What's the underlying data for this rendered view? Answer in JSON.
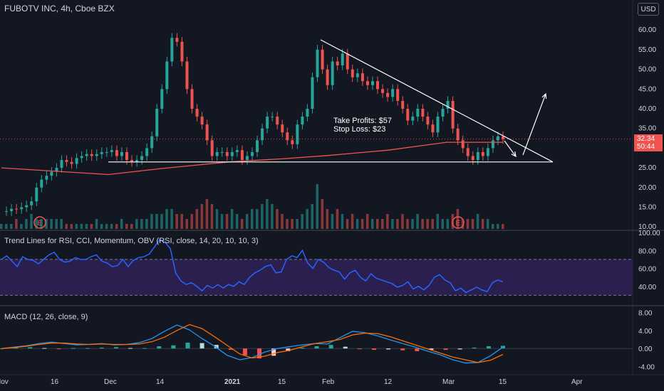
{
  "header": {
    "title": "FUBOTV INC, 4h, Cboe BZX",
    "currency": "USD"
  },
  "price_tag": {
    "price": "32.34",
    "countdown": "50:44"
  },
  "annotation": {
    "line1": "Take Profits: $57",
    "line2": "Stop Loss: $23"
  },
  "panes": {
    "rsi": {
      "title": "Trend Lines for RSI, CCI, Momentum, OBV (RSI, close, 14, 20, 10, 10, 3)"
    },
    "macd": {
      "title": "MACD (12, 26, close, 9)"
    }
  },
  "earnings_markers": [
    "E",
    "E"
  ],
  "colors": {
    "background": "#131722",
    "up": "#26a69a",
    "down": "#ef5350",
    "ma": "#ef5350",
    "rsi_line": "#2962ff",
    "rsi_band": "#2a1f4f",
    "macd_line": "#2196f3",
    "signal_line": "#ff6d00",
    "trendline": "#ffffff"
  },
  "chart_data": [
    {
      "type": "line",
      "title": "FUBOTV INC, 4h, Cboe BZX",
      "y_ticks": [
        "60.00",
        "55.00",
        "50.00",
        "45.00",
        "40.00",
        "35.00",
        "30.00",
        "25.00",
        "20.00",
        "15.00",
        "10.00"
      ],
      "x_ticks": [
        "Nov",
        "16",
        "Dec",
        "14",
        "2021",
        "15",
        "Feb",
        "12",
        "Mar",
        "15",
        "Apr"
      ],
      "ylim": [
        9.5,
        64
      ],
      "close_series": [
        14,
        14,
        14.6,
        14.5,
        15,
        15.5,
        16.5,
        20,
        22,
        23,
        24,
        25,
        27,
        26.5,
        26,
        27.5,
        28,
        28.5,
        28,
        28.5,
        29,
        29,
        29.5,
        28,
        29,
        27,
        26.5,
        27,
        28,
        30,
        33,
        40,
        45,
        52,
        58,
        57,
        52,
        45,
        40,
        38,
        36,
        32,
        28,
        29,
        29,
        28,
        29,
        29.5,
        27,
        28,
        29,
        32,
        35,
        38,
        38,
        36,
        34,
        32,
        31,
        36,
        38,
        40,
        48,
        55,
        50,
        46,
        52,
        51,
        54,
        50,
        48,
        49,
        47,
        46,
        47,
        45,
        44,
        43,
        45,
        42,
        40,
        37,
        38,
        40,
        38,
        36,
        34,
        38,
        40,
        42,
        35,
        32,
        30,
        28,
        27,
        29,
        28,
        30,
        32,
        33,
        32.3
      ],
      "moving_average": [
        {
          "x": "Nov",
          "y": 25
        },
        {
          "x": "Dec",
          "y": 23.3
        },
        {
          "x": "14",
          "y": 24.8
        },
        {
          "x": "2021",
          "y": 26.5
        },
        {
          "x": "15",
          "y": 27.3
        },
        {
          "x": "Feb",
          "y": 28.1
        },
        {
          "x": "12",
          "y": 29.5
        },
        {
          "x": "Mar",
          "y": 31.5
        },
        {
          "x": "15",
          "y": 31.5
        }
      ],
      "volume": [
        1,
        1,
        1,
        2,
        1,
        2,
        3,
        2,
        2,
        2,
        2,
        2,
        2,
        1,
        1,
        1,
        1,
        1,
        1,
        2,
        1,
        1,
        1,
        1,
        2,
        1,
        1,
        2,
        2,
        2,
        3,
        3,
        3,
        4,
        4,
        3,
        3,
        2,
        3,
        4,
        5,
        6,
        5,
        4,
        3,
        3,
        4,
        3,
        2,
        3,
        4,
        4,
        5,
        6,
        5,
        4,
        3,
        2,
        2,
        2,
        3,
        4,
        5,
        9,
        6,
        4,
        3,
        4,
        3,
        2,
        3,
        2,
        2,
        3,
        2,
        2,
        2,
        3,
        2,
        2,
        3,
        2,
        2,
        3,
        2,
        2,
        2,
        3,
        2,
        2,
        3,
        4,
        2,
        2,
        2,
        3,
        2,
        2,
        1,
        1,
        1
      ],
      "trendlines": [
        {
          "from": {
            "x": "Feb",
            "y": 57.5
          },
          "to": {
            "x": "15",
            "y": 26.5
          }
        },
        {
          "from": {
            "x": "Dec",
            "y": 26.5
          },
          "to": {
            "x": "15",
            "y": 26.5
          }
        }
      ]
    },
    {
      "type": "line",
      "title": "Trend Lines for RSI, CCI, Momentum, OBV (RSI, close, 14, 20, 10, 10, 3)",
      "y_ticks": [
        "100.00",
        "80.00",
        "60.00",
        "40.00"
      ],
      "ylim": [
        20,
        100
      ],
      "bands": [
        70,
        30
      ],
      "series": [
        {
          "values": [
            70,
            74,
            68,
            62,
            73,
            70,
            69,
            65,
            70,
            75,
            78,
            70,
            67,
            68,
            72,
            70,
            70,
            73,
            75,
            68,
            66,
            62,
            63,
            70,
            62,
            69,
            72,
            73,
            76,
            84,
            92,
            89,
            82,
            55,
            46,
            42,
            44,
            40,
            35,
            41,
            38,
            42,
            38,
            42,
            40,
            45,
            42,
            50,
            55,
            58,
            62,
            64,
            55,
            56,
            70,
            74,
            72,
            80,
            66,
            60,
            70,
            67,
            61,
            58,
            56,
            48,
            55,
            58,
            50,
            46,
            54,
            49,
            47,
            45,
            43,
            39,
            41,
            45,
            37,
            40,
            36,
            41,
            50,
            53,
            47,
            44,
            35,
            38,
            33,
            36,
            39,
            36,
            34,
            44,
            47,
            45
          ]
        }
      ]
    },
    {
      "type": "bar",
      "title": "MACD (12, 26, close, 9)",
      "y_ticks": [
        "8.00",
        "4.00",
        "0.00",
        "-4.00"
      ],
      "ylim": [
        -5,
        9
      ],
      "series": [
        {
          "values": [
            0,
            0.3,
            0.6,
            1.1,
            1.4,
            1.1,
            0.8,
            0.9,
            1.1,
            0.8,
            0.9,
            1.3,
            2.2,
            3.8,
            5.2,
            4.1,
            2.2,
            0.5,
            -1.5,
            -2.5,
            -2.0,
            -0.8,
            0.0,
            0.4,
            0.8,
            1.1,
            1.0,
            2.4,
            3.8,
            3.5,
            2.8,
            1.9,
            1.1,
            0.3,
            -0.6,
            -1.4,
            -2.5,
            -3.2,
            -3.1,
            -1.6,
            0.3
          ]
        },
        {
          "values": [
            0,
            0.2,
            0.5,
            0.9,
            1.2,
            1.2,
            1.0,
            0.9,
            1.0,
            0.9,
            0.9,
            1.0,
            1.5,
            2.5,
            4.0,
            5.3,
            4.4,
            2.6,
            0.7,
            -1.2,
            -2.1,
            -1.7,
            -0.9,
            -0.4,
            0.4,
            1.1,
            1.5,
            2.0,
            3.0,
            3.4,
            3.3,
            2.6,
            1.7,
            0.8,
            -0.1,
            -1.0,
            -1.9,
            -2.5,
            -3.1,
            -2.6,
            -1.3
          ]
        },
        {
          "values": [
            0,
            0.2,
            0.3,
            0.1,
            -0.1,
            0.1,
            0.1,
            0.2,
            0.3,
            0.1,
            0.1,
            0.5,
            0.7,
            1.3,
            1.2,
            0.8,
            -0.3,
            -1.5,
            -2.2,
            -1.6,
            -0.6,
            0.2,
            0.5,
            0.8,
            0.4,
            -0.1,
            -0.3,
            -0.2,
            -0.4,
            -0.6,
            -0.3,
            -0.3,
            -0.2,
            0.2,
            0.5,
            0.6
          ]
        }
      ]
    }
  ]
}
